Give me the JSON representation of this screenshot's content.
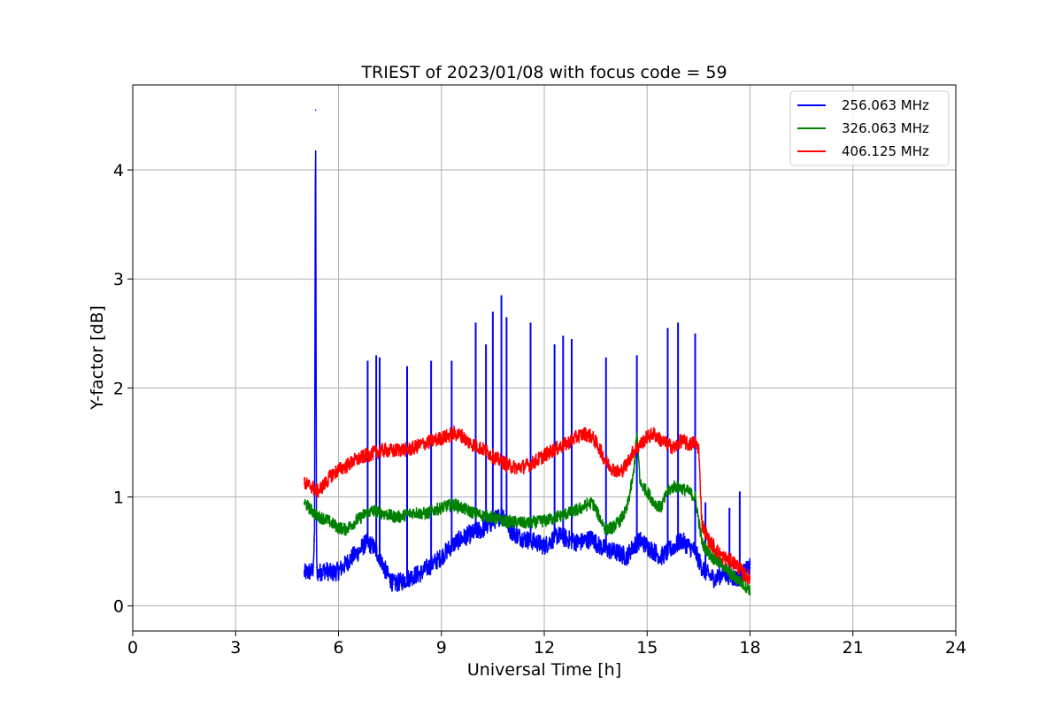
{
  "chart_data": {
    "type": "line",
    "title": "TRIEST of 2023/01/08 with focus code = 59",
    "xlabel": "Universal Time [h]",
    "ylabel": "Y-factor [dB]",
    "xlim": [
      0,
      24
    ],
    "ylim": [
      -0.23,
      4.78
    ],
    "xticks": [
      0,
      3,
      6,
      9,
      12,
      15,
      18,
      21,
      24
    ],
    "xtick_labels": [
      "0",
      "3",
      "6",
      "9",
      "12",
      "15",
      "18",
      "21",
      "24"
    ],
    "yticks": [
      0,
      1,
      2,
      3,
      4
    ],
    "ytick_labels": [
      "0",
      "1",
      "2",
      "3",
      "4"
    ],
    "grid": true,
    "legend_position": "top-right",
    "series": [
      {
        "name": "256.063 MHz",
        "color": "#0000ff",
        "x": [
          5.0,
          5.25,
          5.3,
          5.33,
          5.36,
          5.4,
          5.6,
          5.8,
          6.0,
          6.2,
          6.4,
          6.6,
          6.8,
          7.0,
          7.2,
          7.4,
          7.6,
          7.8,
          8.0,
          8.2,
          8.4,
          8.6,
          8.8,
          9.0,
          9.2,
          9.4,
          9.6,
          9.8,
          10.0,
          10.2,
          10.4,
          10.6,
          10.8,
          11.0,
          11.2,
          11.4,
          11.6,
          11.8,
          12.0,
          12.2,
          12.4,
          12.6,
          12.8,
          13.0,
          13.2,
          13.4,
          13.6,
          13.8,
          14.0,
          14.2,
          14.4,
          14.6,
          14.8,
          15.0,
          15.2,
          15.4,
          15.6,
          15.8,
          16.0,
          16.2,
          16.4,
          16.6,
          16.8,
          17.0,
          17.2,
          17.4,
          17.6,
          17.8,
          18.0
        ],
        "y": [
          0.3,
          0.32,
          0.6,
          4.55,
          0.35,
          0.3,
          0.33,
          0.3,
          0.32,
          0.38,
          0.45,
          0.5,
          0.58,
          0.55,
          0.45,
          0.3,
          0.2,
          0.22,
          0.25,
          0.28,
          0.3,
          0.35,
          0.4,
          0.45,
          0.52,
          0.58,
          0.62,
          0.65,
          0.68,
          0.7,
          0.75,
          0.8,
          0.85,
          0.7,
          0.65,
          0.62,
          0.6,
          0.58,
          0.55,
          0.6,
          0.65,
          0.62,
          0.6,
          0.58,
          0.6,
          0.62,
          0.55,
          0.52,
          0.5,
          0.48,
          0.45,
          0.55,
          0.6,
          0.55,
          0.5,
          0.45,
          0.5,
          0.55,
          0.6,
          0.55,
          0.5,
          0.35,
          0.28,
          0.25,
          0.3,
          0.28,
          0.25,
          0.3,
          0.35
        ],
        "spikes": [
          {
            "x": 5.33,
            "y": 4.55
          },
          {
            "x": 6.85,
            "y": 2.25
          },
          {
            "x": 7.1,
            "y": 2.3
          },
          {
            "x": 7.2,
            "y": 2.28
          },
          {
            "x": 8.0,
            "y": 2.2
          },
          {
            "x": 8.7,
            "y": 2.25
          },
          {
            "x": 9.3,
            "y": 2.25
          },
          {
            "x": 10.0,
            "y": 2.6
          },
          {
            "x": 10.3,
            "y": 2.4
          },
          {
            "x": 10.5,
            "y": 2.7
          },
          {
            "x": 10.75,
            "y": 2.85
          },
          {
            "x": 10.9,
            "y": 2.65
          },
          {
            "x": 11.6,
            "y": 2.6
          },
          {
            "x": 12.3,
            "y": 2.4
          },
          {
            "x": 12.55,
            "y": 2.48
          },
          {
            "x": 12.8,
            "y": 2.45
          },
          {
            "x": 13.8,
            "y": 2.28
          },
          {
            "x": 14.7,
            "y": 2.3
          },
          {
            "x": 15.6,
            "y": 2.55
          },
          {
            "x": 15.9,
            "y": 2.6
          },
          {
            "x": 16.4,
            "y": 2.5
          },
          {
            "x": 16.7,
            "y": 0.95
          },
          {
            "x": 17.4,
            "y": 0.9
          },
          {
            "x": 17.7,
            "y": 1.05
          }
        ]
      },
      {
        "name": "326.063 MHz",
        "color": "#008000",
        "x": [
          5.0,
          5.2,
          5.4,
          5.6,
          5.8,
          6.0,
          6.2,
          6.4,
          6.6,
          6.8,
          7.0,
          7.2,
          7.4,
          7.6,
          7.8,
          8.0,
          8.2,
          8.4,
          8.6,
          8.8,
          9.0,
          9.2,
          9.4,
          9.6,
          9.8,
          10.0,
          10.2,
          10.4,
          10.6,
          10.8,
          11.0,
          11.2,
          11.4,
          11.6,
          11.8,
          12.0,
          12.2,
          12.4,
          12.6,
          12.8,
          13.0,
          13.2,
          13.4,
          13.6,
          13.8,
          14.0,
          14.2,
          14.4,
          14.6,
          14.7,
          14.8,
          15.0,
          15.2,
          15.4,
          15.6,
          15.8,
          16.0,
          16.2,
          16.4,
          16.6,
          16.8,
          17.0,
          17.2,
          17.4,
          17.6,
          17.8,
          18.0
        ],
        "y": [
          0.95,
          0.88,
          0.82,
          0.8,
          0.76,
          0.72,
          0.7,
          0.75,
          0.8,
          0.85,
          0.87,
          0.86,
          0.84,
          0.82,
          0.82,
          0.84,
          0.86,
          0.85,
          0.85,
          0.88,
          0.9,
          0.92,
          0.93,
          0.9,
          0.87,
          0.85,
          0.83,
          0.82,
          0.8,
          0.78,
          0.77,
          0.77,
          0.76,
          0.76,
          0.77,
          0.78,
          0.8,
          0.82,
          0.84,
          0.86,
          0.88,
          0.92,
          0.95,
          0.82,
          0.7,
          0.72,
          0.78,
          0.88,
          1.2,
          1.58,
          1.12,
          1.05,
          0.95,
          0.9,
          1.05,
          1.1,
          1.08,
          1.05,
          1.0,
          0.58,
          0.48,
          0.42,
          0.38,
          0.3,
          0.25,
          0.2,
          0.15
        ]
      },
      {
        "name": "406.125 MHz",
        "color": "#ff0000",
        "x": [
          5.0,
          5.2,
          5.4,
          5.6,
          5.8,
          6.0,
          6.2,
          6.4,
          6.6,
          6.8,
          7.0,
          7.2,
          7.4,
          7.6,
          7.8,
          8.0,
          8.2,
          8.4,
          8.6,
          8.8,
          9.0,
          9.2,
          9.4,
          9.6,
          9.8,
          10.0,
          10.2,
          10.4,
          10.6,
          10.8,
          11.0,
          11.2,
          11.4,
          11.6,
          11.8,
          12.0,
          12.2,
          12.4,
          12.6,
          12.8,
          13.0,
          13.2,
          13.4,
          13.6,
          13.8,
          14.0,
          14.2,
          14.4,
          14.6,
          14.8,
          15.0,
          15.2,
          15.4,
          15.6,
          15.8,
          16.0,
          16.2,
          16.4,
          16.5,
          16.6,
          16.8,
          17.0,
          17.2,
          17.4,
          17.6,
          17.8,
          18.0
        ],
        "y": [
          1.12,
          1.1,
          1.05,
          1.12,
          1.2,
          1.25,
          1.28,
          1.32,
          1.35,
          1.38,
          1.4,
          1.42,
          1.43,
          1.42,
          1.44,
          1.43,
          1.45,
          1.48,
          1.5,
          1.52,
          1.54,
          1.56,
          1.58,
          1.56,
          1.5,
          1.47,
          1.44,
          1.4,
          1.35,
          1.32,
          1.28,
          1.27,
          1.28,
          1.3,
          1.34,
          1.38,
          1.42,
          1.45,
          1.48,
          1.52,
          1.56,
          1.58,
          1.55,
          1.45,
          1.32,
          1.26,
          1.22,
          1.3,
          1.42,
          1.48,
          1.55,
          1.58,
          1.52,
          1.48,
          1.45,
          1.52,
          1.48,
          1.5,
          1.45,
          0.75,
          0.6,
          0.52,
          0.45,
          0.42,
          0.38,
          0.3,
          0.25
        ]
      }
    ]
  }
}
